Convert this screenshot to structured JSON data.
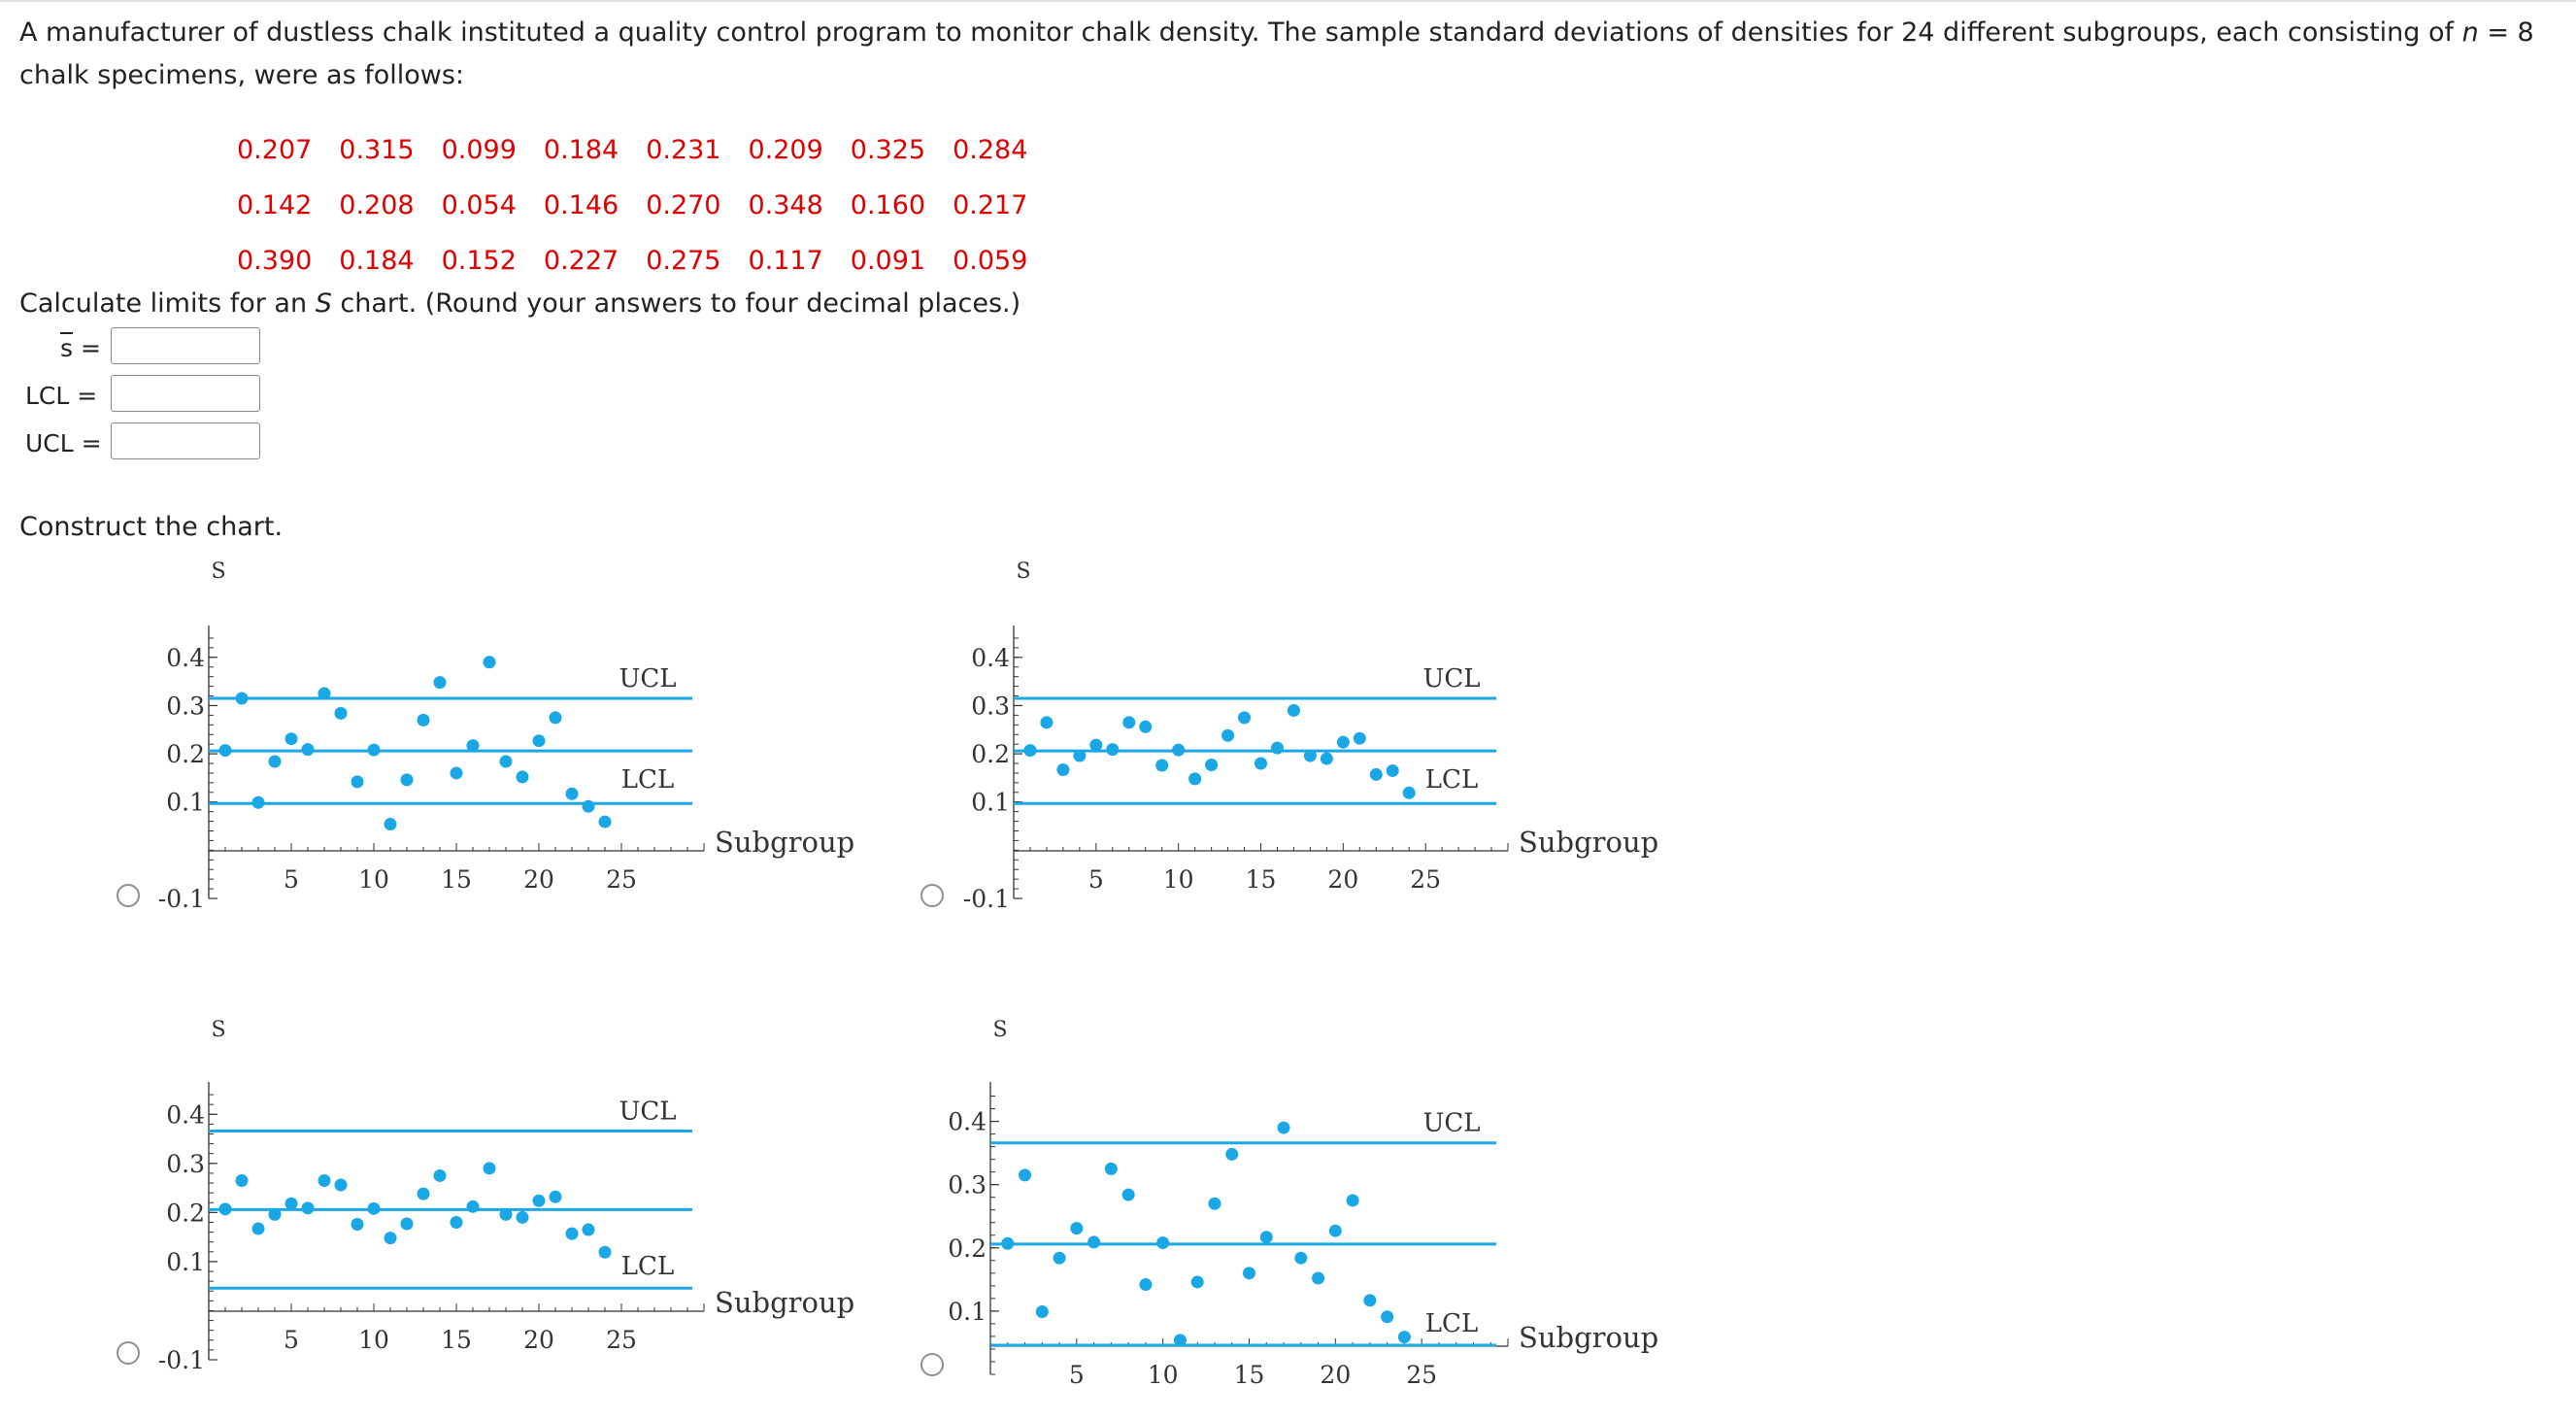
{
  "question": {
    "intro_part1": "A manufacturer of dustless chalk instituted a quality control program to monitor chalk density. The sample standard deviations of densities for 24 different subgroups, each consisting of ",
    "intro_n_symbol": "n",
    "intro_part2": " = 8 chalk specimens, were as follows:",
    "data_rows": [
      [
        "0.207",
        "0.315",
        "0.099",
        "0.184",
        "0.231",
        "0.209",
        "0.325",
        "0.284"
      ],
      [
        "0.142",
        "0.208",
        "0.054",
        "0.146",
        "0.270",
        "0.348",
        "0.160",
        "0.217"
      ],
      [
        "0.390",
        "0.184",
        "0.152",
        "0.227",
        "0.275",
        "0.117",
        "0.091",
        "0.059"
      ]
    ],
    "data_color": "#e00000",
    "instruction_part1": "Calculate limits for an ",
    "instruction_symbol": "S",
    "instruction_part2": " chart. (Round your answers to four decimal places.)"
  },
  "fields": {
    "sbar": {
      "symbol": "s",
      "equals": " =",
      "value": ""
    },
    "lcl": {
      "label": "LCL =",
      "value": ""
    },
    "ucl": {
      "label": "UCL =",
      "value": ""
    }
  },
  "construct_label": "Construct the chart.",
  "colors": {
    "series": "#1aa7e6",
    "axis": "#333333",
    "radio_border": "#8f8f8f"
  },
  "chart_data": [
    {
      "type": "scatter",
      "ylabel": "S",
      "xlabel": "Subgroup",
      "yticks": [
        -0.1,
        0.1,
        0.2,
        0.3,
        0.4
      ],
      "ytick_labels": [
        "-0.1",
        "0.1",
        "0.2",
        "0.3",
        "0.4"
      ],
      "xticks": [
        5,
        10,
        15,
        20,
        25
      ],
      "ylim": [
        -0.1,
        0.45
      ],
      "xlim": [
        0,
        30
      ],
      "center": 0.206,
      "ucl": 0.315,
      "lcl": 0.097,
      "line_labels": {
        "ucl": "UCL",
        "lcl": "LCL"
      },
      "x": [
        1,
        2,
        3,
        4,
        5,
        6,
        7,
        8,
        9,
        10,
        11,
        12,
        13,
        14,
        15,
        16,
        17,
        18,
        19,
        20,
        21,
        22,
        23,
        24
      ],
      "values": [
        0.207,
        0.315,
        0.099,
        0.184,
        0.231,
        0.209,
        0.325,
        0.284,
        0.142,
        0.208,
        0.054,
        0.146,
        0.27,
        0.348,
        0.16,
        0.217,
        0.39,
        0.184,
        0.152,
        0.227,
        0.275,
        0.117,
        0.091,
        0.059
      ]
    },
    {
      "type": "scatter",
      "ylabel": "S",
      "xlabel": "Subgroup",
      "yticks": [
        -0.1,
        0.1,
        0.2,
        0.3,
        0.4
      ],
      "ytick_labels": [
        "-0.1",
        "0.1",
        "0.2",
        "0.3",
        "0.4"
      ],
      "xticks": [
        5,
        10,
        15,
        20,
        25
      ],
      "ylim": [
        -0.1,
        0.45
      ],
      "xlim": [
        0,
        30
      ],
      "center": 0.206,
      "ucl": 0.315,
      "lcl": 0.097,
      "line_labels": {
        "ucl": "UCL",
        "lcl": "LCL"
      },
      "x": [
        1,
        2,
        3,
        4,
        5,
        6,
        7,
        8,
        9,
        10,
        11,
        12,
        13,
        14,
        15,
        16,
        17,
        18,
        19,
        20,
        21,
        22,
        23,
        24
      ],
      "values": [
        0.207,
        0.265,
        0.167,
        0.196,
        0.218,
        0.209,
        0.265,
        0.256,
        0.176,
        0.208,
        0.148,
        0.177,
        0.238,
        0.275,
        0.18,
        0.212,
        0.29,
        0.196,
        0.19,
        0.224,
        0.232,
        0.157,
        0.165,
        0.119
      ]
    },
    {
      "type": "scatter",
      "ylabel": "S",
      "xlabel": "Subgroup",
      "yticks": [
        -0.1,
        0.1,
        0.2,
        0.3,
        0.4
      ],
      "ytick_labels": [
        "-0.1",
        "0.1",
        "0.2",
        "0.3",
        "0.4"
      ],
      "xticks": [
        5,
        10,
        15,
        20,
        25
      ],
      "ylim": [
        -0.1,
        0.45
      ],
      "xlim": [
        0,
        30
      ],
      "center": 0.206,
      "ucl": 0.366,
      "lcl": 0.046,
      "line_labels": {
        "ucl": "UCL",
        "lcl": "LCL"
      },
      "x": [
        1,
        2,
        3,
        4,
        5,
        6,
        7,
        8,
        9,
        10,
        11,
        12,
        13,
        14,
        15,
        16,
        17,
        18,
        19,
        20,
        21,
        22,
        23,
        24
      ],
      "values": [
        0.207,
        0.265,
        0.167,
        0.196,
        0.218,
        0.209,
        0.265,
        0.256,
        0.176,
        0.208,
        0.148,
        0.177,
        0.238,
        0.275,
        0.18,
        0.212,
        0.29,
        0.196,
        0.19,
        0.224,
        0.232,
        0.157,
        0.165,
        0.119
      ]
    },
    {
      "type": "scatter",
      "ylabel": "S",
      "xlabel": "Subgroup",
      "yticks": [
        0.1,
        0.2,
        0.3,
        0.4
      ],
      "ytick_labels": [
        "0.1",
        "0.2",
        "0.3",
        "0.4"
      ],
      "xticks": [
        5,
        10,
        15,
        20,
        25
      ],
      "ylim": [
        0,
        0.45
      ],
      "xlim": [
        0,
        30
      ],
      "center": 0.206,
      "ucl": 0.366,
      "lcl": 0.046,
      "line_labels": {
        "ucl": "UCL",
        "lcl": "LCL"
      },
      "x": [
        1,
        2,
        3,
        4,
        5,
        6,
        7,
        8,
        9,
        10,
        11,
        12,
        13,
        14,
        15,
        16,
        17,
        18,
        19,
        20,
        21,
        22,
        23,
        24
      ],
      "values": [
        0.207,
        0.315,
        0.099,
        0.184,
        0.231,
        0.209,
        0.325,
        0.284,
        0.142,
        0.208,
        0.054,
        0.146,
        0.27,
        0.348,
        0.16,
        0.217,
        0.39,
        0.184,
        0.152,
        0.227,
        0.275,
        0.117,
        0.091,
        0.059
      ]
    }
  ]
}
